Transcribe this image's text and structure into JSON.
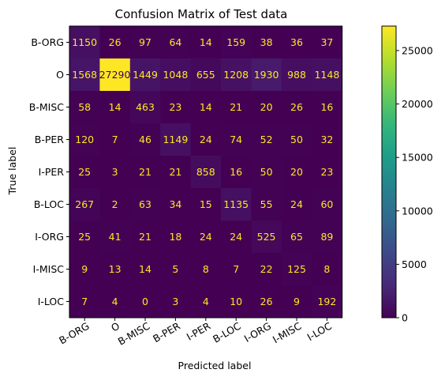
{
  "chart_data": {
    "type": "heatmap",
    "title": "Confusion Matrix of Test data",
    "xlabel": "Predicted label",
    "ylabel": "True label",
    "x_categories": [
      "B-ORG",
      "O",
      "B-MISC",
      "B-PER",
      "I-PER",
      "B-LOC",
      "I-ORG",
      "I-MISC",
      "I-LOC"
    ],
    "y_categories": [
      "B-ORG",
      "O",
      "B-MISC",
      "B-PER",
      "I-PER",
      "B-LOC",
      "I-ORG",
      "I-MISC",
      "I-LOC"
    ],
    "matrix": [
      [
        1150,
        26,
        97,
        64,
        14,
        159,
        38,
        36,
        37
      ],
      [
        1568,
        27290,
        1449,
        1048,
        655,
        1208,
        1930,
        988,
        1148
      ],
      [
        58,
        14,
        463,
        23,
        14,
        21,
        20,
        26,
        16
      ],
      [
        120,
        7,
        46,
        1149,
        24,
        74,
        52,
        50,
        32
      ],
      [
        25,
        3,
        21,
        21,
        858,
        16,
        50,
        20,
        23
      ],
      [
        267,
        2,
        63,
        34,
        15,
        1135,
        55,
        24,
        60
      ],
      [
        25,
        41,
        21,
        18,
        24,
        24,
        525,
        65,
        89
      ],
      [
        9,
        13,
        14,
        5,
        8,
        7,
        22,
        125,
        8
      ],
      [
        7,
        4,
        0,
        3,
        4,
        10,
        26,
        9,
        192
      ]
    ],
    "colormap": "viridis",
    "colorbar": {
      "range": [
        0,
        27290
      ],
      "ticks": [
        0,
        5000,
        10000,
        15000,
        20000,
        25000
      ],
      "tick_labels": [
        "0",
        "5000",
        "10000",
        "15000",
        "20000",
        "25000"
      ]
    },
    "grid": false
  },
  "colors": {
    "viridis_stops": [
      "#440154",
      "#482878",
      "#3e4989",
      "#31688e",
      "#26828e",
      "#1f9e89",
      "#35b779",
      "#6ece58",
      "#b5de2b",
      "#fde725"
    ]
  }
}
